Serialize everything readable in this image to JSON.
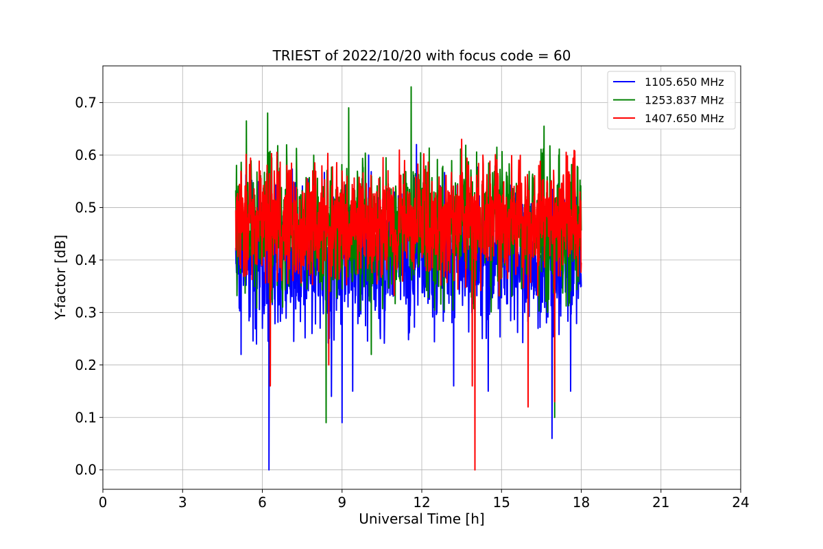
{
  "chart_data": {
    "type": "line",
    "title": "TRIEST of 2022/10/20 with focus code = 60",
    "xlabel": "Universal Time [h]",
    "ylabel": "Y-factor [dB]",
    "xlim": [
      0,
      24
    ],
    "ylim": [
      -0.037,
      0.77
    ],
    "xticks": [
      0,
      3,
      6,
      9,
      12,
      15,
      18,
      21,
      24
    ],
    "yticks": [
      0.0,
      0.1,
      0.2,
      0.3,
      0.4,
      0.5,
      0.6,
      0.7
    ],
    "ytick_labels": [
      "0.0",
      "0.1",
      "0.2",
      "0.3",
      "0.4",
      "0.5",
      "0.6",
      "0.7"
    ],
    "grid": true,
    "legend_position": "top-right",
    "x_range_of_data": [
      5.0,
      18.0
    ],
    "series": [
      {
        "name": "1105.650 MHz",
        "color": "#0000ff",
        "center": 0.405,
        "spread": 0.085,
        "min": 0.0,
        "max": 0.62,
        "events": [
          [
            6.25,
            0.0
          ],
          [
            8.6,
            0.14
          ],
          [
            9.0,
            0.09
          ],
          [
            9.4,
            0.15
          ],
          [
            16.9,
            0.06
          ],
          [
            5.2,
            0.22
          ],
          [
            13.2,
            0.16
          ],
          [
            14.5,
            0.15
          ],
          [
            17.6,
            0.15
          ],
          [
            11.8,
            0.62
          ],
          [
            10.0,
            0.6
          ]
        ]
      },
      {
        "name": "1253.837 MHz",
        "color": "#008000",
        "center": 0.46,
        "spread": 0.08,
        "min": 0.09,
        "max": 0.73,
        "events": [
          [
            11.6,
            0.73
          ],
          [
            9.25,
            0.69
          ],
          [
            6.2,
            0.68
          ],
          [
            8.4,
            0.09
          ],
          [
            5.4,
            0.665
          ],
          [
            16.6,
            0.655
          ],
          [
            17.0,
            0.1
          ],
          [
            10.1,
            0.22
          ],
          [
            14.0,
            0.18
          ]
        ]
      },
      {
        "name": "1407.650 MHz",
        "color": "#ff0000",
        "center": 0.47,
        "spread": 0.07,
        "min": 0.0,
        "max": 0.63,
        "events": [
          [
            14.0,
            0.0
          ],
          [
            13.9,
            0.16
          ],
          [
            16.0,
            0.12
          ],
          [
            17.0,
            0.13
          ],
          [
            6.3,
            0.16
          ],
          [
            8.5,
            0.2
          ],
          [
            13.5,
            0.63
          ],
          [
            14.3,
            0.6
          ]
        ]
      }
    ]
  }
}
